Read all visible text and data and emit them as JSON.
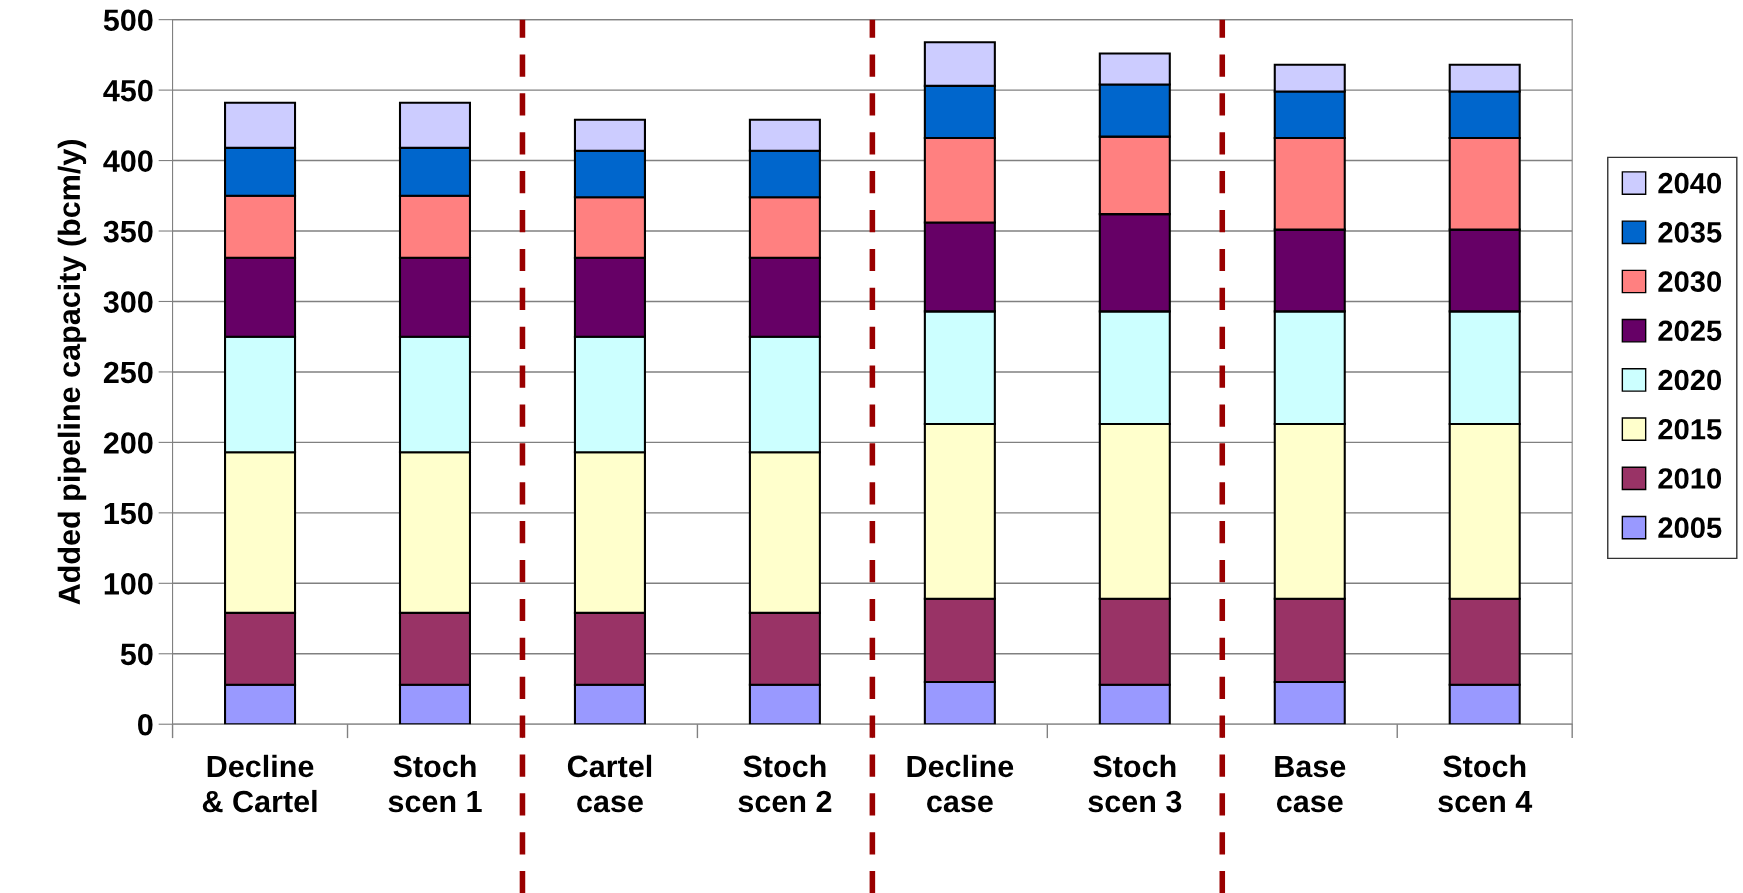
{
  "chart_data": {
    "type": "bar",
    "stacked": true,
    "ylabel": "Added pipeline capacity (bcm/y)",
    "categories": [
      "Decline\n& Cartel",
      "Stoch\nscen 1",
      "Cartel\ncase",
      "Stoch\nscen 2",
      "Decline\ncase",
      "Stoch\nscen 3",
      "Base\ncase",
      "Stoch\nscen 4"
    ],
    "series": [
      {
        "name": "2005",
        "color": "#9999ff",
        "values": [
          28,
          28,
          28,
          28,
          30,
          28,
          30,
          28
        ]
      },
      {
        "name": "2010",
        "color": "#993366",
        "values": [
          51,
          51,
          51,
          51,
          59,
          61,
          59,
          61
        ]
      },
      {
        "name": "2015",
        "color": "#ffffcc",
        "values": [
          114,
          114,
          114,
          114,
          124,
          124,
          124,
          124
        ]
      },
      {
        "name": "2020",
        "color": "#ccffff",
        "values": [
          82,
          82,
          82,
          82,
          80,
          80,
          80,
          80
        ]
      },
      {
        "name": "2025",
        "color": "#660066",
        "values": [
          56,
          56,
          56,
          56,
          63,
          69,
          58,
          58
        ]
      },
      {
        "name": "2030",
        "color": "#ff8080",
        "values": [
          44,
          44,
          43,
          43,
          60,
          55,
          65,
          65
        ]
      },
      {
        "name": "2035",
        "color": "#0066cc",
        "values": [
          34,
          34,
          33,
          33,
          37,
          37,
          33,
          33
        ]
      },
      {
        "name": "2040",
        "color": "#ccccff",
        "values": [
          32,
          32,
          22,
          22,
          31,
          22,
          19,
          19
        ]
      }
    ],
    "ylim": [
      0,
      500
    ],
    "yticks": [
      0,
      50,
      100,
      150,
      200,
      250,
      300,
      350,
      400,
      450,
      500
    ],
    "grid": "y",
    "legend": "right"
  }
}
